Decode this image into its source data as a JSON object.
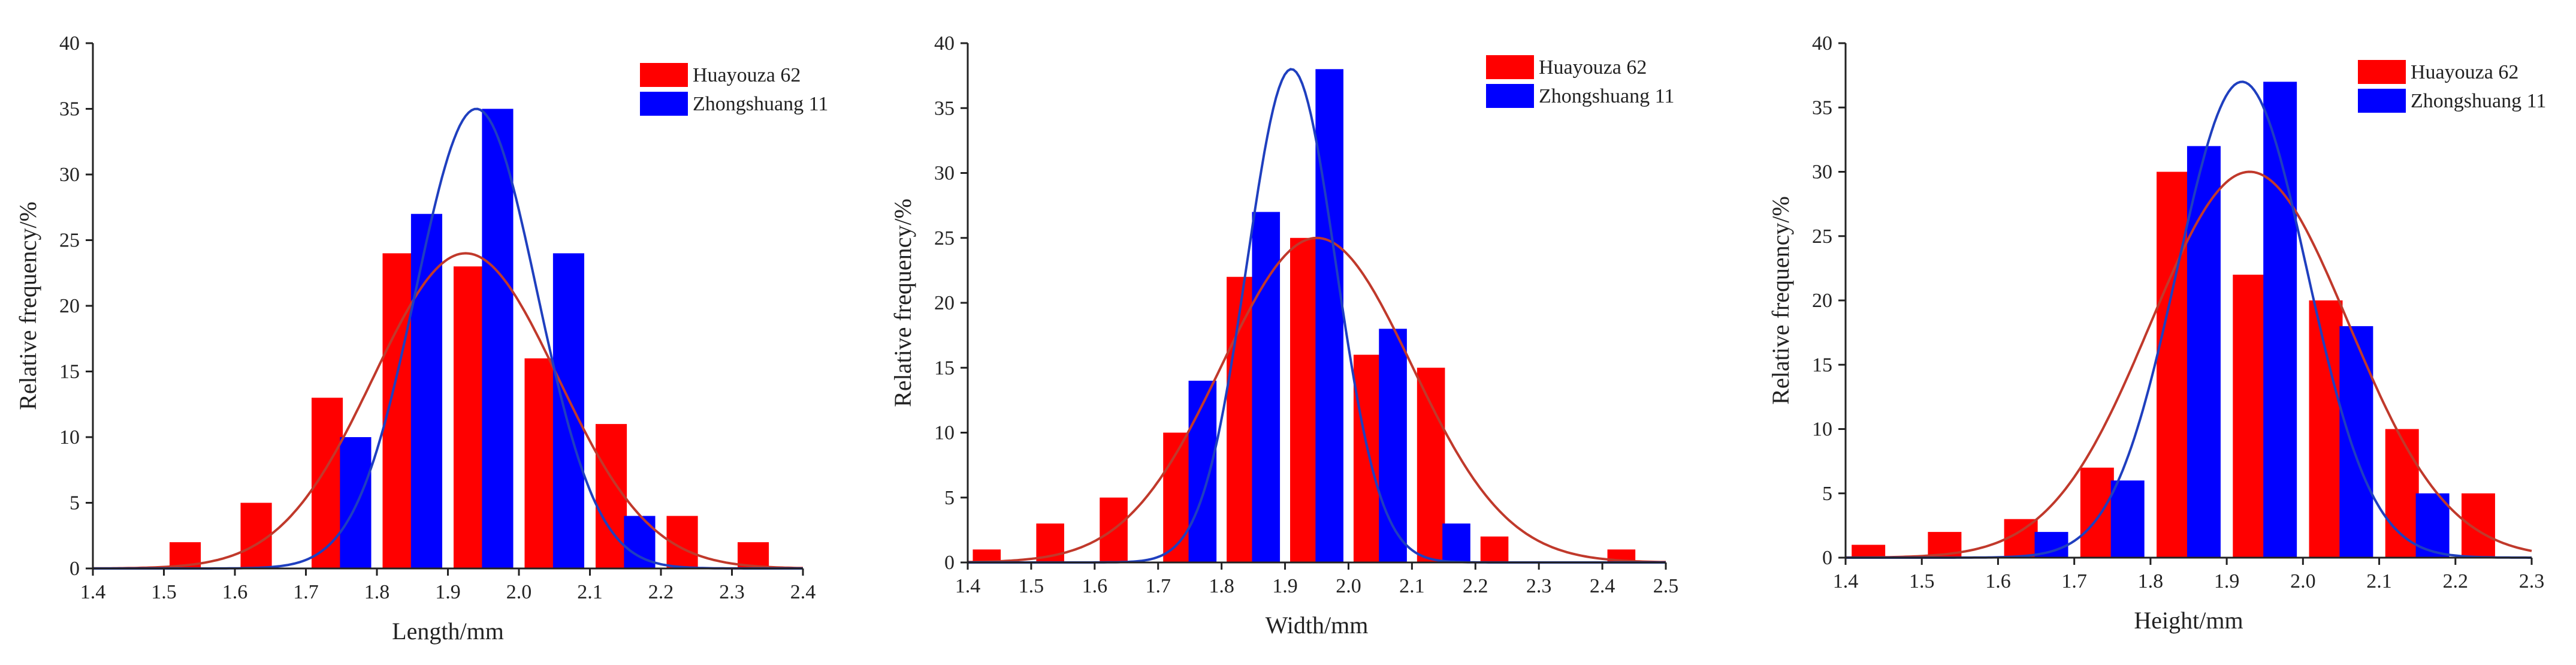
{
  "chart_data": [
    {
      "type": "bar",
      "xlabel": "Length/mm",
      "ylabel": "Relative frequency/%",
      "xlim": [
        1.4,
        2.4
      ],
      "ylim": [
        0,
        40
      ],
      "xticks": [
        "1.4",
        "1.5",
        "1.6",
        "1.7",
        "1.8",
        "1.9",
        "2.0",
        "2.1",
        "2.2",
        "2.3",
        "2.4"
      ],
      "yticks": [
        "0",
        "5",
        "10",
        "15",
        "20",
        "25",
        "30",
        "35",
        "40"
      ],
      "legend": "top-right",
      "series": [
        {
          "name": "Huayouza 62",
          "color": "#ff0000",
          "curve_color": "#c0392b",
          "x": [
            1.53,
            1.63,
            1.73,
            1.83,
            1.93,
            2.03,
            2.13,
            2.23,
            2.33
          ],
          "values": [
            2,
            5,
            13,
            24,
            23,
            16,
            11,
            4,
            2
          ],
          "fit": {
            "mean": 1.925,
            "sd": 0.13,
            "peak": 24
          }
        },
        {
          "name": "Zhongshuang 11",
          "color": "#0000ff",
          "curve_color": "#1f3fbf",
          "x": [
            1.77,
            1.87,
            1.97,
            2.07,
            2.17
          ],
          "values": [
            10,
            27,
            35,
            24,
            4
          ],
          "fit": {
            "mean": 1.94,
            "sd": 0.085,
            "peak": 35
          }
        }
      ]
    },
    {
      "type": "bar",
      "xlabel": "Width/mm",
      "ylabel": "Relative frequency/%",
      "xlim": [
        1.4,
        2.5
      ],
      "ylim": [
        0,
        40
      ],
      "xticks": [
        "1.4",
        "1.5",
        "1.6",
        "1.7",
        "1.8",
        "1.9",
        "2.0",
        "2.1",
        "2.2",
        "2.3",
        "2.4",
        "2.5"
      ],
      "yticks": [
        "0",
        "5",
        "10",
        "15",
        "20",
        "25",
        "30",
        "35",
        "40"
      ],
      "legend": "top-right",
      "series": [
        {
          "name": "Huayouza 62",
          "color": "#ff0000",
          "curve_color": "#c0392b",
          "x": [
            1.43,
            1.53,
            1.63,
            1.73,
            1.83,
            1.93,
            2.03,
            2.13,
            2.23,
            2.43
          ],
          "values": [
            1,
            3,
            5,
            10,
            22,
            25,
            16,
            15,
            2,
            1
          ],
          "fit": {
            "mean": 1.95,
            "sd": 0.15,
            "peak": 25
          }
        },
        {
          "name": "Zhongshuang 11",
          "color": "#0000ff",
          "curve_color": "#1f3fbf",
          "x": [
            1.77,
            1.87,
            1.97,
            2.07,
            2.17
          ],
          "values": [
            14,
            27,
            38,
            18,
            3
          ],
          "fit": {
            "mean": 1.91,
            "sd": 0.07,
            "peak": 38
          }
        }
      ]
    },
    {
      "type": "bar",
      "xlabel": "Height/mm",
      "ylabel": "Relative frequency/%",
      "xlim": [
        1.4,
        2.3
      ],
      "ylim": [
        0,
        40
      ],
      "xticks": [
        "1.4",
        "1.5",
        "1.6",
        "1.7",
        "1.8",
        "1.9",
        "2.0",
        "2.1",
        "2.2",
        "2.3"
      ],
      "yticks": [
        "0",
        "5",
        "10",
        "15",
        "20",
        "25",
        "30",
        "35",
        "40"
      ],
      "legend": "top-right",
      "series": [
        {
          "name": "Huayouza 62",
          "color": "#ff0000",
          "curve_color": "#c0392b",
          "x": [
            1.43,
            1.53,
            1.63,
            1.73,
            1.83,
            1.93,
            2.03,
            2.13,
            2.23
          ],
          "values": [
            1,
            2,
            3,
            7,
            30,
            22,
            20,
            10,
            5
          ],
          "fit": {
            "mean": 1.93,
            "sd": 0.13,
            "peak": 30
          }
        },
        {
          "name": "Zhongshuang 11",
          "color": "#0000ff",
          "curve_color": "#1f3fbf",
          "x": [
            1.67,
            1.77,
            1.87,
            1.97,
            2.07,
            2.17
          ],
          "values": [
            2,
            6,
            32,
            37,
            18,
            5
          ],
          "fit": {
            "mean": 1.92,
            "sd": 0.085,
            "peak": 37
          }
        }
      ]
    }
  ]
}
